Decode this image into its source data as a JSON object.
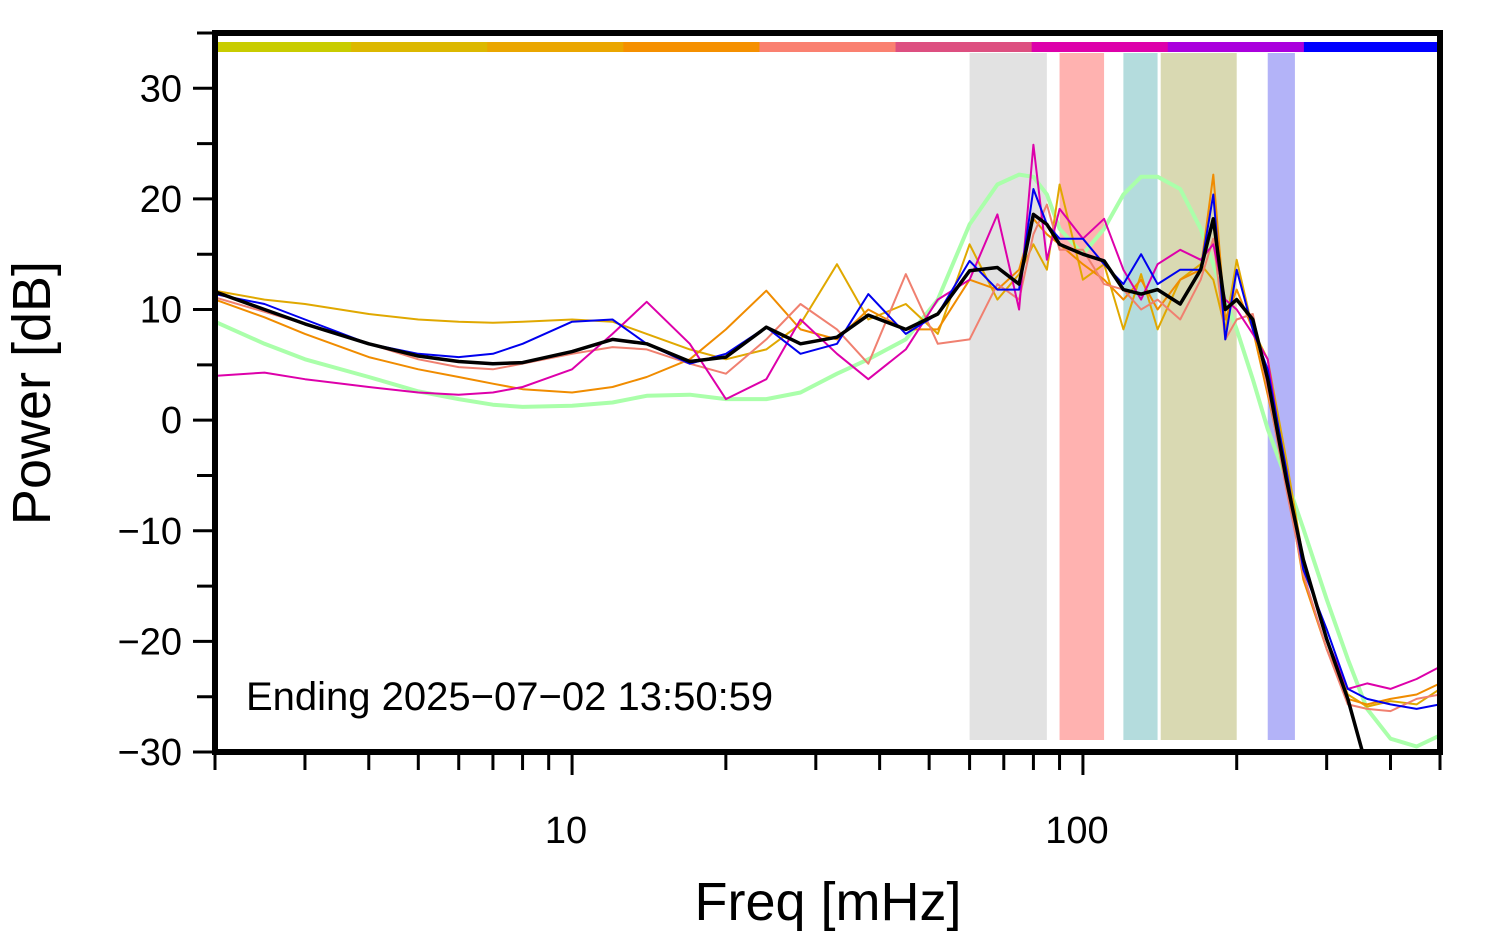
{
  "chart_data": {
    "type": "line",
    "xlabel": "Freq [mHz]",
    "ylabel": "Power [dB]",
    "annotation": "Ending 2025−07−02 13:50:59",
    "xscale": "log",
    "xlim": [
      2,
      500
    ],
    "ylim": [
      -30,
      35
    ],
    "xticks": [
      10,
      100
    ],
    "xminor": [
      2,
      3,
      4,
      5,
      6,
      7,
      8,
      9,
      20,
      30,
      40,
      50,
      60,
      70,
      80,
      90,
      200,
      300,
      400,
      500
    ],
    "yticks": [
      {
        "value": -30,
        "label": "−30"
      },
      {
        "value": -20,
        "label": "−20"
      },
      {
        "value": -10,
        "label": "−10"
      },
      0,
      10,
      20,
      30
    ],
    "yminor": [
      -25,
      -15,
      -5,
      5,
      15,
      25,
      35
    ],
    "colorbar": [
      "#c8cc00",
      "#dcb800",
      "#eaa600",
      "#f59000",
      "#fa8070",
      "#dd4f80",
      "#dd00aa",
      "#aa00dd",
      "#0000ff"
    ],
    "bands": [
      {
        "x0": 60,
        "x1": 85,
        "color": "#e2e2e2"
      },
      {
        "x0": 90,
        "x1": 110,
        "color": "#ffb2b0"
      },
      {
        "x0": 120,
        "x1": 140,
        "color": "#b4dcdd"
      },
      {
        "x0": 142,
        "x1": 200,
        "color": "#d9d9b2"
      },
      {
        "x0": 230,
        "x1": 260,
        "color": "#b3b3f8"
      }
    ],
    "x": [
      2,
      2.5,
      3,
      4,
      5,
      6,
      7,
      8,
      10,
      12,
      14,
      17,
      20,
      24,
      28,
      33,
      38,
      45,
      52,
      60,
      68,
      75,
      80,
      85,
      90,
      100,
      110,
      120,
      130,
      140,
      155,
      170,
      180,
      190,
      200,
      215,
      230,
      250,
      270,
      300,
      330,
      360,
      400,
      450,
      500
    ],
    "series": [
      {
        "color": "#aaffaa",
        "width": 4,
        "values": [
          8.9,
          6.9,
          5.5,
          3.9,
          2.6,
          1.9,
          1.4,
          1.2,
          1.3,
          1.6,
          2.2,
          2.3,
          1.9,
          1.9,
          2.5,
          4.2,
          5.5,
          7.3,
          10.9,
          17.7,
          21.3,
          22.2,
          22,
          20.4,
          17.3,
          15,
          17.3,
          20.4,
          22,
          22,
          20.9,
          17.3,
          14.1,
          10.9,
          8.2,
          3.7,
          -0.8,
          -5.3,
          -9.8,
          -16.2,
          -21.6,
          -26.1,
          -28.8,
          -29.5,
          -28.5
        ]
      },
      {
        "color": "#e0a800",
        "width": 2,
        "values": [
          11.7,
          10.9,
          10.5,
          9.6,
          9.1,
          8.9,
          8.8,
          8.9,
          9.1,
          8.9,
          7.8,
          6.4,
          5.5,
          6.4,
          8.7,
          14.1,
          9.1,
          10.5,
          7.8,
          15.9,
          10.9,
          13.2,
          15.9,
          13.6,
          21.3,
          12.7,
          14.1,
          8.2,
          13.2,
          8.2,
          12.7,
          14.1,
          12.7,
          8.2,
          14.5,
          8.2,
          5.5,
          -3.5,
          -12.6,
          -19.8,
          -24.8,
          -25.9,
          -25.4,
          -25.7,
          -24.3
        ]
      },
      {
        "color": "#f08c00",
        "width": 2,
        "values": [
          10.9,
          9.3,
          7.8,
          5.7,
          4.6,
          3.9,
          3.3,
          2.8,
          2.5,
          3,
          3.9,
          5.5,
          8.2,
          11.7,
          8.2,
          7.3,
          10,
          8.2,
          8.2,
          12.7,
          11.8,
          13.6,
          18.2,
          16.8,
          15.9,
          14.1,
          12.7,
          10.9,
          12.7,
          10,
          12.7,
          13.6,
          22.2,
          9.1,
          11.8,
          8.2,
          2.3,
          -5.3,
          -14.4,
          -20.7,
          -25.2,
          -25.7,
          -25.2,
          -24.8,
          -23.8
        ]
      },
      {
        "color": "#f08070",
        "width": 2,
        "values": [
          11.1,
          9.8,
          8.7,
          6.9,
          5.5,
          4.8,
          4.6,
          5.1,
          6,
          6.6,
          6.4,
          5.1,
          4.2,
          7.3,
          10.5,
          8.2,
          5.1,
          13.2,
          6.9,
          7.3,
          12.3,
          10.9,
          16.8,
          19.5,
          15.4,
          15.4,
          12.3,
          11.8,
          10,
          10.9,
          9.1,
          12.7,
          16.4,
          7.3,
          9.1,
          9.6,
          2.8,
          -6.2,
          -13.9,
          -20.7,
          -25.7,
          -26.1,
          -26.3,
          -25.2,
          -24.8
        ]
      },
      {
        "color": "#dd00aa",
        "width": 2,
        "values": [
          4,
          4.3,
          3.7,
          3,
          2.5,
          2.3,
          2.5,
          3,
          4.6,
          7.8,
          10.7,
          6.9,
          1.9,
          3.7,
          9.1,
          6,
          3.7,
          6.4,
          10.9,
          12.7,
          18.6,
          10,
          24.9,
          14.5,
          19.1,
          16.4,
          18.2,
          13.6,
          10.9,
          14.1,
          15.4,
          14.5,
          15.9,
          10.9,
          10,
          7.8,
          5.5,
          -5.3,
          -12.6,
          -19.8,
          -24.3,
          -23.8,
          -24.3,
          -23.4,
          -22.3
        ]
      },
      {
        "color": "#0000ee",
        "width": 2,
        "values": [
          11.4,
          10.5,
          9.1,
          6.9,
          6,
          5.7,
          6,
          6.9,
          8.9,
          9.1,
          6.9,
          5.1,
          6,
          8.4,
          6,
          6.9,
          11.4,
          7.8,
          9.6,
          14.4,
          11.8,
          11.8,
          20.9,
          17.7,
          16.4,
          16.4,
          14.1,
          12.3,
          15,
          12.3,
          13.6,
          13.6,
          20.4,
          7.3,
          13.6,
          8.2,
          4.6,
          -4.4,
          -13.5,
          -18.9,
          -24.3,
          -25.2,
          -25.7,
          -26.1,
          -25.7
        ]
      },
      {
        "color": "#000000",
        "width": 3.5,
        "values": [
          11.6,
          10,
          8.7,
          6.9,
          5.8,
          5.3,
          5.1,
          5.2,
          6.2,
          7.3,
          6.9,
          5.3,
          5.7,
          8.4,
          6.9,
          7.5,
          9.5,
          8.2,
          9.6,
          13.5,
          13.8,
          12.3,
          18.6,
          17.7,
          15.9,
          15,
          14.4,
          11.8,
          11.4,
          11.8,
          10.5,
          13.6,
          18.2,
          10,
          10.9,
          9.1,
          3.7,
          -5.3,
          -12.6,
          -19.8,
          -25.2,
          -31.5,
          null,
          null,
          null
        ]
      }
    ]
  }
}
